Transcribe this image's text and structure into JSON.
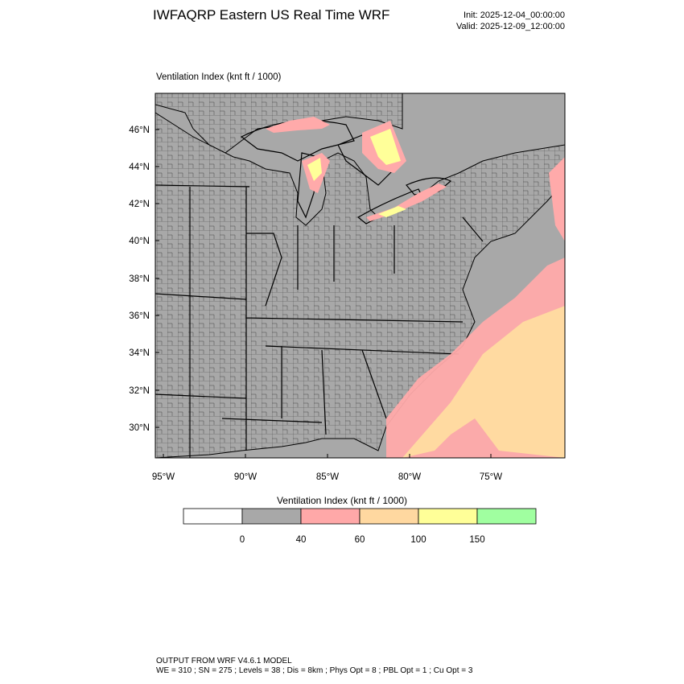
{
  "header": {
    "title": "IWFAQRP Eastern US Real Time WRF",
    "init": "Init: 2025-12-04_00:00:00",
    "valid": "Valid: 2025-12-09_12:00:00"
  },
  "panel": {
    "field_title": "Ventilation Index   (knt ft / 1000)"
  },
  "axes": {
    "lat_labels": [
      "46°N",
      "44°N",
      "42°N",
      "40°N",
      "38°N",
      "36°N",
      "34°N",
      "32°N",
      "30°N"
    ],
    "lon_labels": [
      "95°W",
      "90°W",
      "85°W",
      "80°W",
      "75°W"
    ]
  },
  "colorbar": {
    "title": "Ventilation Index  (knt ft / 1000)",
    "labels": [
      "0",
      "40",
      "60",
      "100",
      "150"
    ],
    "colors": [
      "#ffffff",
      "#a8a8a8",
      "#ffa8a8",
      "#ffd8a0",
      "#ffff98",
      "#a0ffa0"
    ]
  },
  "colors": {
    "land": "#a8a8a8",
    "water": "#a8a8a8",
    "low": "#ffaaaa",
    "mid": "#ffdca0",
    "high": "#ffff99"
  },
  "footer": {
    "line1": "OUTPUT FROM WRF V4.6.1 MODEL",
    "line2": "WE = 310 ; SN = 275 ; Levels = 38 ; Dis = 8km ; Phys Opt = 8 ; PBL Opt = 1 ; Cu Opt = 3"
  }
}
